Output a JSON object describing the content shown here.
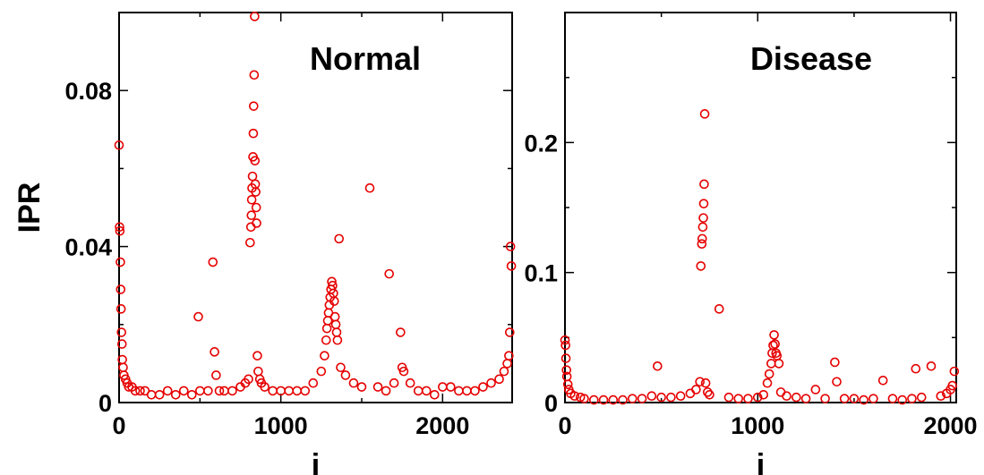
{
  "chart_data": [
    {
      "type": "scatter",
      "title": "Normal",
      "xlabel": "i",
      "ylabel": "IPR",
      "xlim": [
        0,
        2430
      ],
      "ylim": [
        0,
        0.1
      ],
      "x_ticks": [
        0,
        1000,
        2000
      ],
      "x_tick_labels": [
        "0",
        "1000",
        "2000"
      ],
      "y_ticks": [
        0,
        0.04,
        0.08
      ],
      "y_tick_labels": [
        "0",
        "0.04",
        "0.08"
      ],
      "grid": false,
      "marker": "open-circle",
      "color": "#e60000",
      "series": [
        {
          "x": [
            0,
            3,
            5,
            8,
            10,
            12,
            15,
            18,
            20,
            25,
            30,
            40,
            50,
            60,
            80,
            100,
            130,
            160,
            200,
            250,
            300,
            350,
            400,
            450,
            490,
            500,
            550,
            580,
            590,
            600,
            620,
            650,
            700,
            750,
            780,
            800,
            810,
            815,
            818,
            820,
            822,
            825,
            828,
            830,
            832,
            835,
            838,
            840,
            842,
            845,
            848,
            850,
            855,
            860,
            870,
            880,
            900,
            950,
            1000,
            1050,
            1100,
            1150,
            1200,
            1250,
            1270,
            1280,
            1285,
            1290,
            1295,
            1300,
            1305,
            1310,
            1315,
            1320,
            1325,
            1330,
            1335,
            1340,
            1345,
            1350,
            1360,
            1370,
            1400,
            1450,
            1500,
            1550,
            1600,
            1650,
            1670,
            1700,
            1740,
            1750,
            1760,
            1800,
            1850,
            1900,
            1950,
            2000,
            2050,
            2100,
            2150,
            2200,
            2250,
            2300,
            2350,
            2380,
            2400,
            2410,
            2415,
            2420,
            2425
          ],
          "y": [
            0.066,
            0.045,
            0.044,
            0.036,
            0.029,
            0.024,
            0.018,
            0.015,
            0.011,
            0.009,
            0.007,
            0.006,
            0.005,
            0.004,
            0.004,
            0.003,
            0.003,
            0.003,
            0.002,
            0.002,
            0.003,
            0.002,
            0.003,
            0.002,
            0.022,
            0.003,
            0.003,
            0.036,
            0.013,
            0.007,
            0.003,
            0.003,
            0.003,
            0.004,
            0.005,
            0.006,
            0.041,
            0.045,
            0.048,
            0.052,
            0.055,
            0.058,
            0.063,
            0.069,
            0.076,
            0.084,
            0.099,
            0.062,
            0.056,
            0.054,
            0.05,
            0.046,
            0.012,
            0.008,
            0.006,
            0.005,
            0.004,
            0.003,
            0.003,
            0.003,
            0.003,
            0.003,
            0.005,
            0.008,
            0.012,
            0.016,
            0.019,
            0.021,
            0.023,
            0.025,
            0.027,
            0.029,
            0.031,
            0.03,
            0.028,
            0.026,
            0.022,
            0.02,
            0.018,
            0.016,
            0.042,
            0.009,
            0.007,
            0.005,
            0.004,
            0.055,
            0.004,
            0.003,
            0.033,
            0.005,
            0.018,
            0.009,
            0.008,
            0.005,
            0.003,
            0.003,
            0.002,
            0.004,
            0.004,
            0.003,
            0.003,
            0.003,
            0.004,
            0.005,
            0.006,
            0.008,
            0.01,
            0.012,
            0.018,
            0.04,
            0.035
          ]
        }
      ]
    },
    {
      "type": "scatter",
      "title": "Disease",
      "xlabel": "i",
      "ylabel": "",
      "xlim": [
        0,
        2030
      ],
      "ylim": [
        0,
        0.3
      ],
      "x_ticks": [
        0,
        1000,
        2000
      ],
      "x_tick_labels": [
        "0",
        "1000",
        "2000"
      ],
      "y_ticks": [
        0,
        0.1,
        0.2
      ],
      "y_tick_labels": [
        "0",
        "0.1",
        "0.2"
      ],
      "grid": false,
      "marker": "open-circle",
      "color": "#e60000",
      "series": [
        {
          "x": [
            0,
            3,
            5,
            8,
            10,
            15,
            20,
            30,
            50,
            80,
            100,
            150,
            200,
            250,
            300,
            350,
            400,
            450,
            480,
            500,
            550,
            600,
            650,
            680,
            700,
            705,
            710,
            712,
            715,
            718,
            720,
            722,
            725,
            730,
            740,
            750,
            800,
            850,
            900,
            950,
            1000,
            1030,
            1050,
            1060,
            1070,
            1075,
            1080,
            1085,
            1090,
            1095,
            1100,
            1110,
            1120,
            1150,
            1200,
            1250,
            1300,
            1350,
            1400,
            1410,
            1450,
            1500,
            1550,
            1600,
            1650,
            1700,
            1750,
            1800,
            1820,
            1850,
            1900,
            1950,
            1980,
            2000,
            2010,
            2020
          ],
          "y": [
            0.048,
            0.044,
            0.034,
            0.025,
            0.02,
            0.014,
            0.01,
            0.007,
            0.005,
            0.004,
            0.003,
            0.002,
            0.002,
            0.002,
            0.002,
            0.003,
            0.003,
            0.005,
            0.028,
            0.004,
            0.004,
            0.005,
            0.007,
            0.01,
            0.016,
            0.105,
            0.122,
            0.126,
            0.135,
            0.142,
            0.153,
            0.168,
            0.222,
            0.015,
            0.008,
            0.006,
            0.072,
            0.004,
            0.003,
            0.003,
            0.004,
            0.006,
            0.015,
            0.022,
            0.03,
            0.038,
            0.044,
            0.052,
            0.045,
            0.038,
            0.036,
            0.03,
            0.008,
            0.005,
            0.004,
            0.003,
            0.01,
            0.003,
            0.031,
            0.016,
            0.003,
            0.003,
            0.002,
            0.003,
            0.017,
            0.003,
            0.002,
            0.003,
            0.026,
            0.004,
            0.028,
            0.005,
            0.007,
            0.01,
            0.013,
            0.024
          ]
        }
      ]
    }
  ]
}
